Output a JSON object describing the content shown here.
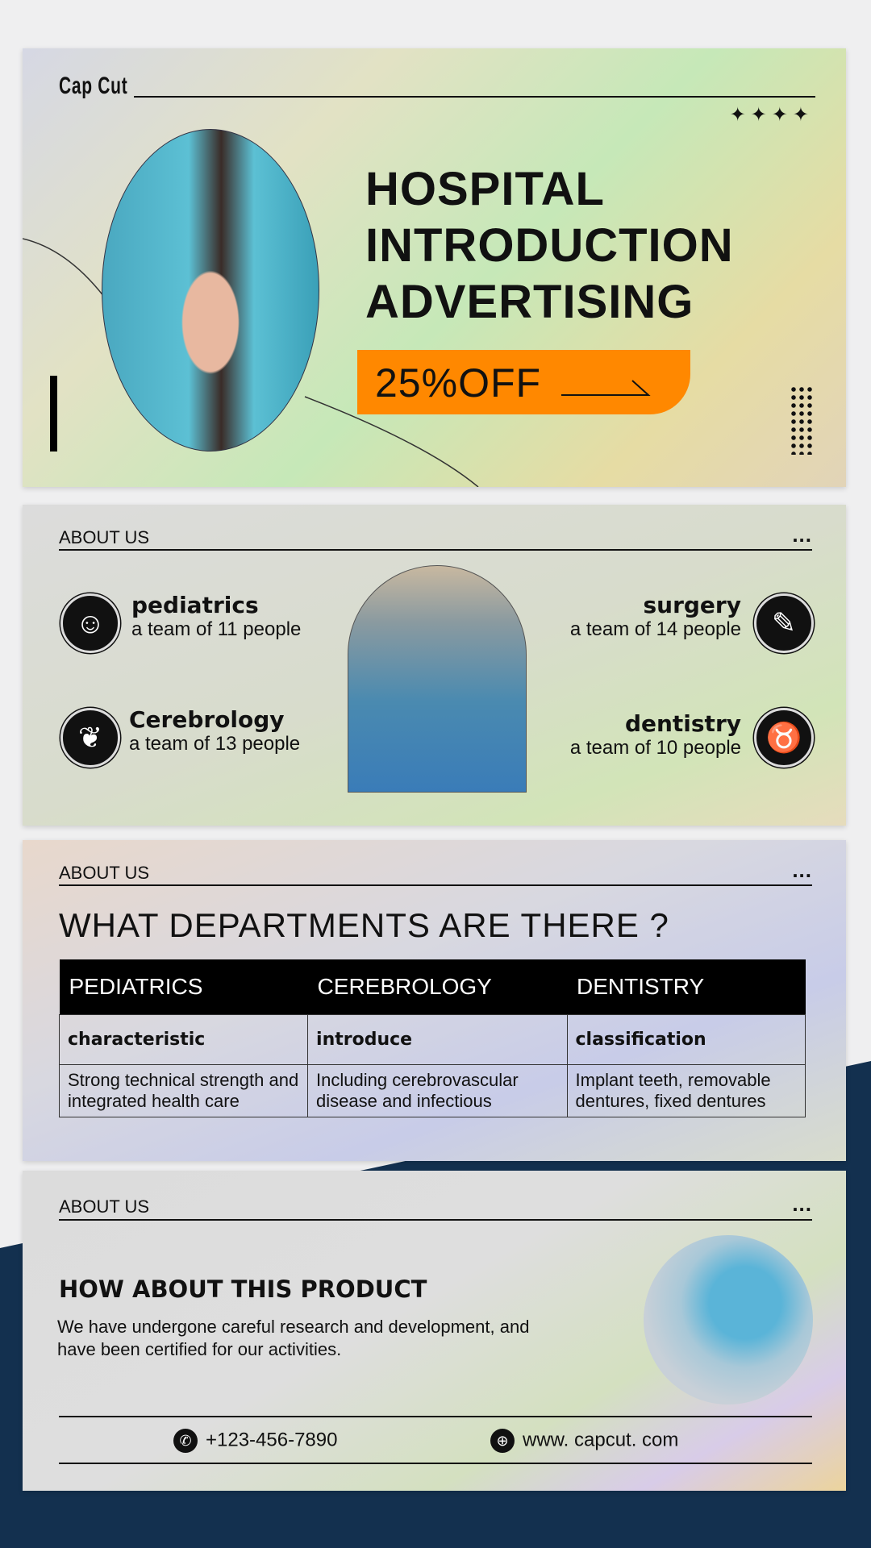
{
  "hero": {
    "brand": "Cap Cut",
    "stars": "✦✦✦✦",
    "title_lines": [
      "HOSPITAL",
      "INTRODUCTION",
      "ADVERTISING"
    ],
    "promo": "25%OFF",
    "accent": "#ff8800"
  },
  "about": {
    "label": "ABOUT US",
    "more": "...",
    "departments": [
      {
        "name": "pediatrics",
        "team": "a team of 11 people",
        "icon": "baby-face-icon"
      },
      {
        "name": "Cerebrology",
        "team": "a team of 13 people",
        "icon": "brain-icon"
      },
      {
        "name": "surgery",
        "team": "a team of 14 people",
        "icon": "scalpel-icon"
      },
      {
        "name": "dentistry",
        "team": "a team of 10 people",
        "icon": "tooth-icon"
      }
    ]
  },
  "departments": {
    "label": "ABOUT US",
    "more": "...",
    "heading": "WHAT DEPARTMENTS ARE THERE ?",
    "headers": [
      "PEDIATRICS",
      "CEREBROLOGY",
      "DENTISTRY"
    ],
    "row1": [
      "characteristic",
      "introduce",
      "classification"
    ],
    "row2": [
      "Strong technical strength and integrated health care",
      "Including cerebrovascular disease and infectious",
      "Implant teeth, removable dentures, fixed dentures"
    ]
  },
  "product": {
    "label": "ABOUT US",
    "more": "...",
    "heading": "HOW ABOUT THIS PRODUCT",
    "body": "We have undergone careful research and development, and have been certified for our activities.",
    "phone": "+123-456-7890",
    "website": "www. capcut. com"
  },
  "colors": {
    "navy": "#13304f",
    "orange": "#ff8800"
  }
}
